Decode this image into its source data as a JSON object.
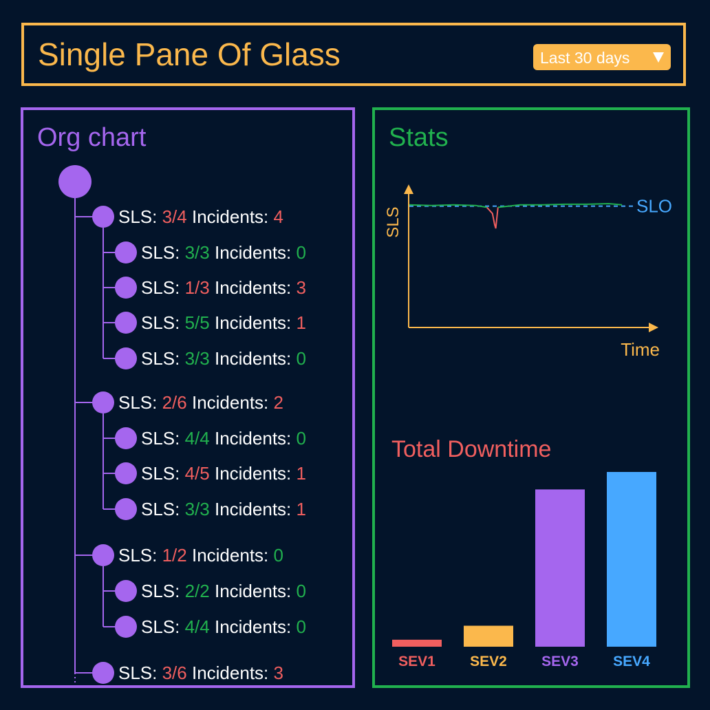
{
  "header": {
    "title": "Single Pane Of Glass",
    "range_select": {
      "value": "Last 30 days"
    }
  },
  "colors": {
    "orange": "#fbb84c",
    "purple": "#a566ee",
    "green": "#21b14e",
    "red": "#f15f5f",
    "blue": "#47a8ff",
    "background": "#03142a"
  },
  "org_chart": {
    "title": "Org chart",
    "label_sls": "SLS:",
    "label_incidents": "Incidents:",
    "teams": [
      {
        "sls": "3/4",
        "sls_ok": false,
        "incidents": "4",
        "incidents_ok": false,
        "children": [
          {
            "sls": "3/3",
            "sls_ok": true,
            "incidents": "0",
            "incidents_ok": true
          },
          {
            "sls": "1/3",
            "sls_ok": false,
            "incidents": "3",
            "incidents_ok": false
          },
          {
            "sls": "5/5",
            "sls_ok": true,
            "incidents": "1",
            "incidents_ok": false
          },
          {
            "sls": "3/3",
            "sls_ok": true,
            "incidents": "0",
            "incidents_ok": true
          }
        ]
      },
      {
        "sls": "2/6",
        "sls_ok": false,
        "incidents": "2",
        "incidents_ok": false,
        "children": [
          {
            "sls": "4/4",
            "sls_ok": true,
            "incidents": "0",
            "incidents_ok": true
          },
          {
            "sls": "4/5",
            "sls_ok": false,
            "incidents": "1",
            "incidents_ok": false
          },
          {
            "sls": "3/3",
            "sls_ok": true,
            "incidents": "1",
            "incidents_ok": false
          }
        ]
      },
      {
        "sls": "1/2",
        "sls_ok": false,
        "incidents": "0",
        "incidents_ok": true,
        "children": [
          {
            "sls": "2/2",
            "sls_ok": true,
            "incidents": "0",
            "incidents_ok": true
          },
          {
            "sls": "4/4",
            "sls_ok": true,
            "incidents": "0",
            "incidents_ok": true
          }
        ]
      },
      {
        "sls": "3/6",
        "sls_ok": false,
        "incidents": "3",
        "incidents_ok": false,
        "children": []
      }
    ]
  },
  "stats": {
    "title": "Stats",
    "sls_chart": {
      "ylabel": "SLS",
      "xlabel": "Time",
      "slo_label": "SLO",
      "slo_value": 0.98,
      "ylim": [
        0,
        1
      ],
      "series": [
        {
          "color": "#21b14e",
          "points": [
            [
              0,
              0.99
            ],
            [
              0.1,
              0.985
            ],
            [
              0.2,
              0.99
            ],
            [
              0.3,
              0.985
            ],
            [
              0.35,
              0.97
            ]
          ]
        },
        {
          "color": "#f15f5f",
          "points": [
            [
              0.35,
              0.97
            ],
            [
              0.375,
              0.92
            ],
            [
              0.385,
              0.83
            ],
            [
              0.39,
              0.8
            ],
            [
              0.4,
              0.97
            ]
          ]
        },
        {
          "color": "#21b14e",
          "points": [
            [
              0.4,
              0.97
            ],
            [
              0.5,
              0.99
            ],
            [
              0.6,
              0.99
            ],
            [
              0.7,
              0.995
            ],
            [
              0.8,
              0.995
            ],
            [
              0.9,
              1.0
            ],
            [
              0.96,
              0.99
            ]
          ]
        }
      ]
    },
    "chart_data": {
      "type": "bar",
      "title": "Total Downtime",
      "categories": [
        "SEV1",
        "SEV2",
        "SEV3",
        "SEV4"
      ],
      "values": [
        4,
        12,
        90,
        100
      ],
      "colors": [
        "#f15f5f",
        "#fbb84c",
        "#a566ee",
        "#47a8ff"
      ],
      "ylim": [
        0,
        100
      ]
    }
  }
}
